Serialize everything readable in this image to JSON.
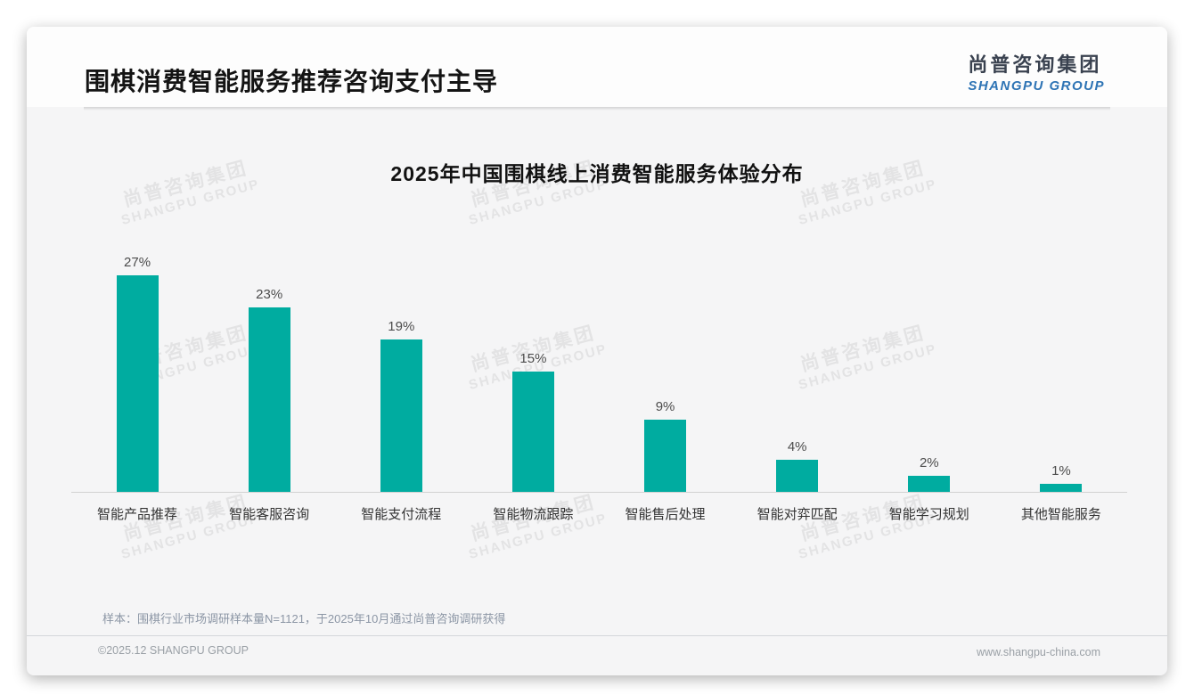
{
  "page": {
    "header": {
      "title": "围棋消费智能服务推荐咨询支付主导"
    },
    "logo": {
      "cn": "尚普咨询集团",
      "en": "SHANGPU GROUP"
    },
    "watermark": {
      "cn": "尚普咨询集团",
      "en": "SHANGPU GROUP"
    },
    "note": {
      "sample": "样本：围棋行业市场调研样本量N=1121，于2025年10月通过尚普咨询调研获得"
    },
    "footer": {
      "copyright": "©2025.12 SHANGPU GROUP",
      "website": "www.shangpu-china.com"
    }
  },
  "colors": {
    "accent_teal": "#00ACA0",
    "logo_cn": "#3a4250",
    "logo_en": "#2e74b5"
  },
  "chart_data": {
    "type": "bar",
    "title": "2025年中国围棋线上消费智能服务体验分布",
    "categories": [
      "智能产品推荐",
      "智能客服咨询",
      "智能支付流程",
      "智能物流跟踪",
      "智能售后处理",
      "智能对弈匹配",
      "智能学习规划",
      "其他智能服务"
    ],
    "values": [
      27,
      23,
      19,
      15,
      9,
      4,
      2,
      1
    ],
    "value_labels": [
      "27%",
      "23%",
      "19%",
      "15%",
      "9%",
      "4%",
      "2%",
      "1%"
    ],
    "unit": "%",
    "xlabel": "",
    "ylabel": "",
    "ylim": [
      0,
      30
    ],
    "grid": false,
    "legend": null,
    "bar_color": "#00ACA0"
  }
}
